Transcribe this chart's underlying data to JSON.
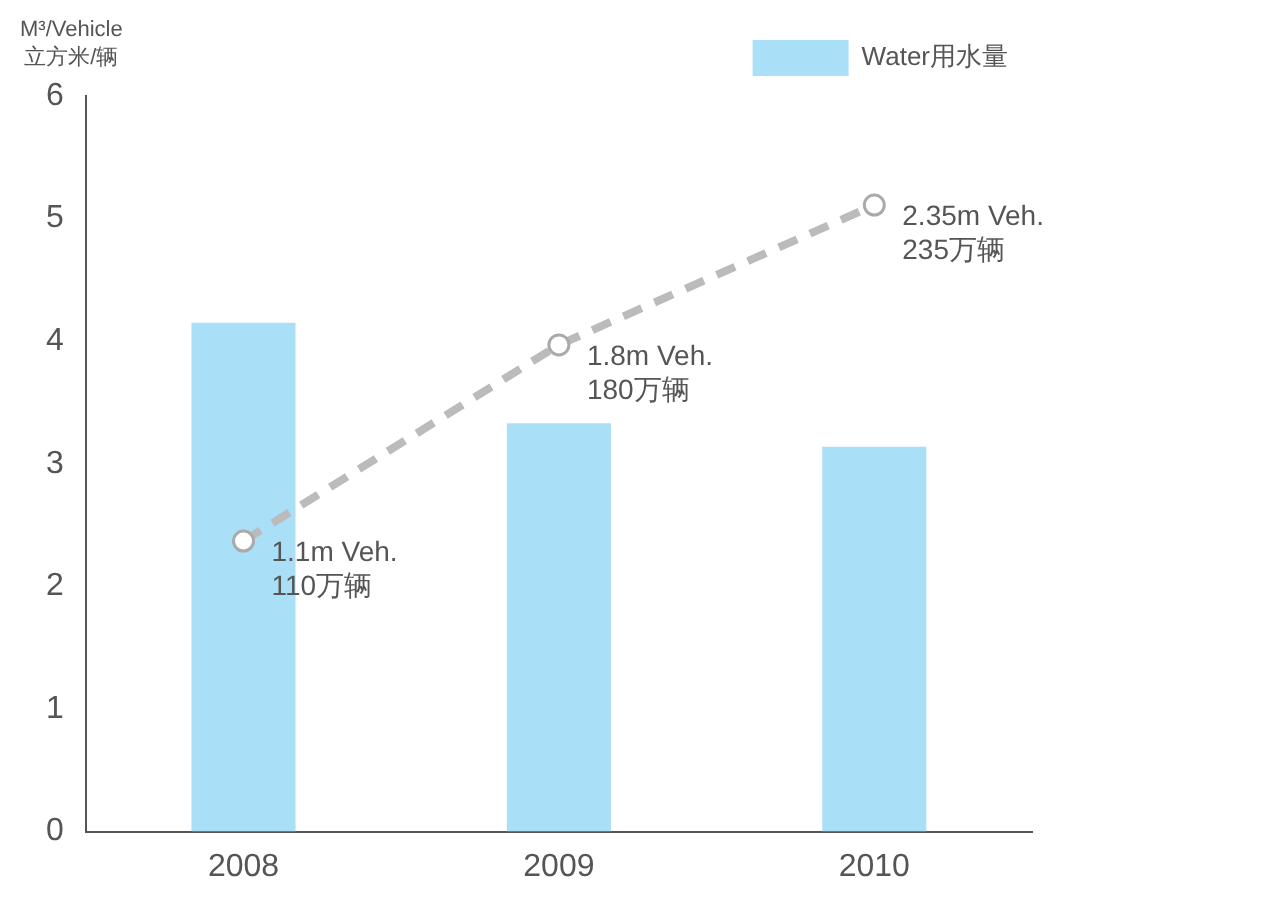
{
  "chart_data": {
    "type": "bar",
    "ylabel": "M³/Vehicle\n立方米/辆",
    "categories": [
      "2008",
      "2009",
      "2010"
    ],
    "series": [
      {
        "name": "Water用水量",
        "color": "#aadff8",
        "values": [
          4.15,
          3.33,
          3.14
        ]
      },
      {
        "type": "line",
        "color": "#bbbbbb",
        "values": [
          2.37,
          3.97,
          5.11
        ],
        "marker": "circle",
        "line_style": "dashed"
      }
    ],
    "ylim": [
      0,
      6
    ],
    "yticks": [
      0,
      1,
      2,
      3,
      4,
      5,
      6
    ],
    "grid": false,
    "legend": "top right",
    "annotations": [
      {
        "text": "1.1m Veh.\n110万辆",
        "x": "2008",
        "y": 2.37
      },
      {
        "text": "1.8m Veh.\n180万辆",
        "x": "2009",
        "y": 3.97
      },
      {
        "text": "2.35m Veh.\n235万辆",
        "x": "2010",
        "y": 5.11
      }
    ]
  }
}
